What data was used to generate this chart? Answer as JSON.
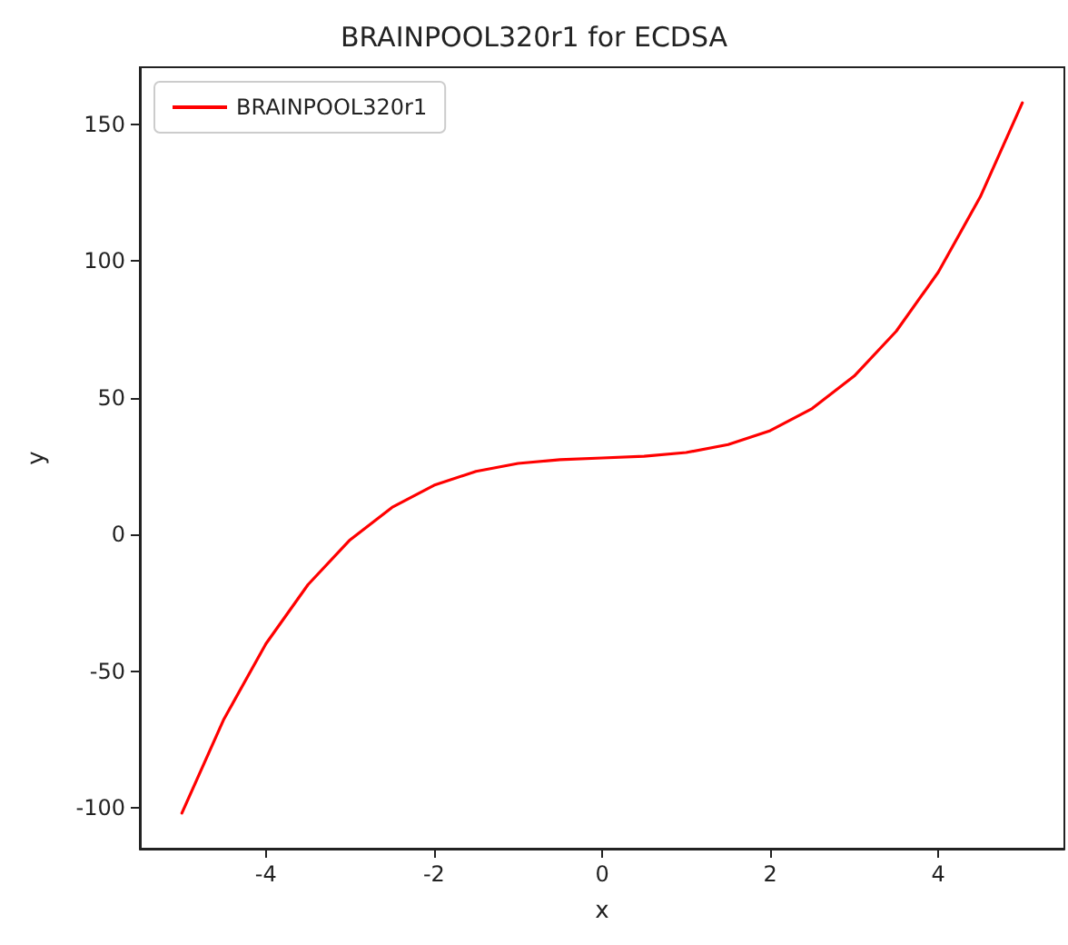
{
  "chart_data": {
    "type": "line",
    "title": "BRAINPOOL320r1 for ECDSA",
    "xlabel": "x",
    "ylabel": "y",
    "x": [
      -5,
      -4.5,
      -4,
      -3.5,
      -3,
      -2.5,
      -2,
      -1.5,
      -1,
      -0.5,
      0,
      0.5,
      1,
      1.5,
      2,
      2.5,
      3,
      3.5,
      4,
      4.5,
      5
    ],
    "series": [
      {
        "name": "BRAINPOOL320r1",
        "color": "#ff0000",
        "values": [
          -102,
          -67.6,
          -40,
          -18.4,
          -2,
          9.9,
          18,
          23.1,
          26,
          27.4,
          28,
          28.6,
          30,
          32.9,
          38,
          46.1,
          58,
          74.4,
          96,
          123.6,
          158
        ]
      }
    ],
    "xlim": [
      -5.5,
      5.5
    ],
    "ylim": [
      -115,
      171
    ],
    "xticks": [
      -4,
      -2,
      0,
      2,
      4
    ],
    "yticks": [
      -100,
      -50,
      0,
      50,
      100,
      150
    ],
    "grid": false,
    "legend": "top left",
    "marker": "none",
    "line_style": "solid"
  }
}
